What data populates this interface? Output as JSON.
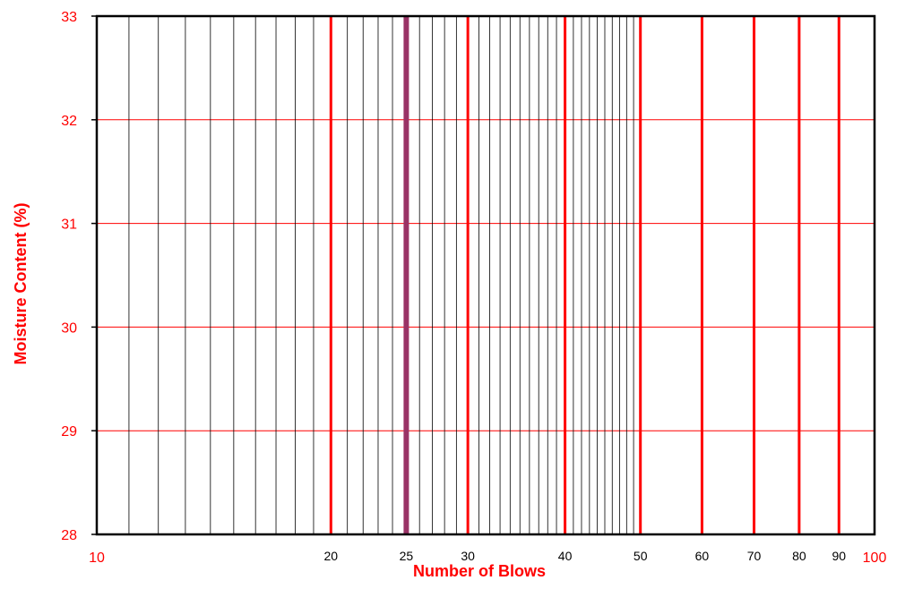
{
  "chart_data": {
    "type": "scatter",
    "title": "",
    "xlabel": "Number of Blows",
    "ylabel": "Moisture Content (%)",
    "x_scale": "log",
    "xlim": [
      10,
      100
    ],
    "ylim": [
      28,
      33
    ],
    "x_tick_labels": [
      "10",
      "20",
      "25",
      "30",
      "40",
      "50",
      "60",
      "70",
      "80",
      "90",
      "100"
    ],
    "x_tick_values": [
      10,
      20,
      25,
      30,
      40,
      50,
      60,
      70,
      80,
      90,
      100
    ],
    "y_tick_labels": [
      "28",
      "29",
      "30",
      "31",
      "32",
      "33"
    ],
    "y_tick_values": [
      28,
      29,
      30,
      31,
      32,
      33
    ],
    "x_major_gridlines": [
      20,
      30,
      40,
      50,
      60,
      70,
      80,
      90
    ],
    "x_minor_gridlines": [
      11,
      12,
      13,
      14,
      15,
      16,
      17,
      18,
      19,
      21,
      22,
      23,
      24,
      26,
      27,
      28,
      29,
      31,
      32,
      33,
      34,
      35,
      36,
      37,
      38,
      39,
      41,
      42,
      43,
      44,
      45,
      46,
      47,
      48,
      49
    ],
    "highlight_x": 25,
    "y_gridlines": [
      29,
      30,
      31,
      32
    ],
    "series": [],
    "colors": {
      "tick_text": "#ff0000",
      "inner_tick_text": "#000000",
      "axis_title": "#ff0000",
      "major_grid": "#ff0000",
      "minor_grid": "#000000",
      "highlight": "#993366",
      "frame": "#000000"
    }
  }
}
